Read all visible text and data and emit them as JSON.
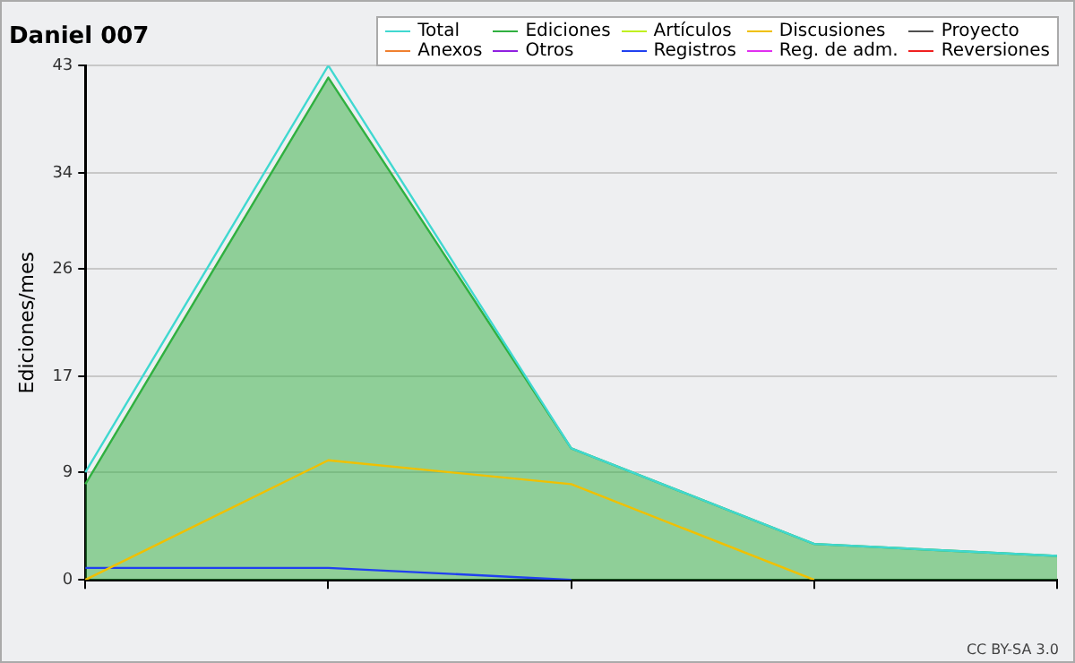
{
  "chart_data": {
    "type": "line",
    "title": "Daniel 007",
    "ylabel": "Ediciones/mes",
    "annotations": [
      "CC BY-SA 3.0"
    ],
    "categories": [
      null,
      null,
      null,
      null,
      null
    ],
    "ylim": [
      0,
      43
    ],
    "yticks": [
      0,
      9,
      17,
      26,
      34,
      43
    ],
    "grid": "y",
    "legend": "top right",
    "marker": "none",
    "series": [
      {
        "name": "Total",
        "color": "#40d8d0",
        "type": "line",
        "values": [
          9,
          43,
          11,
          3,
          2
        ]
      },
      {
        "name": "Ediciones",
        "color": "#30b040",
        "type": "area",
        "values": [
          8,
          42,
          11,
          3,
          2
        ]
      },
      {
        "name": "Artículos",
        "color": "#c0f020",
        "type": "line",
        "values": [
          null,
          null,
          null,
          null,
          null
        ]
      },
      {
        "name": "Discusiones",
        "color": "#f0c000",
        "type": "line",
        "values": [
          0,
          10,
          8,
          0,
          null
        ]
      },
      {
        "name": "Proyecto",
        "color": "#505050",
        "type": "line",
        "values": [
          null,
          null,
          null,
          null,
          null
        ]
      },
      {
        "name": "Anexos",
        "color": "#f08030",
        "type": "line",
        "values": [
          null,
          null,
          null,
          null,
          null
        ]
      },
      {
        "name": "Otros",
        "color": "#9020e0",
        "type": "line",
        "values": [
          null,
          null,
          null,
          null,
          null
        ]
      },
      {
        "name": "Registros",
        "color": "#2040f0",
        "type": "line",
        "values": [
          1,
          1,
          0,
          null,
          null
        ]
      },
      {
        "name": "Reg. de adm.",
        "color": "#e030f0",
        "type": "line",
        "values": [
          null,
          null,
          null,
          null,
          null
        ]
      },
      {
        "name": "Reversiones",
        "color": "#f02020",
        "type": "line",
        "values": [
          null,
          null,
          null,
          null,
          null
        ]
      }
    ]
  }
}
